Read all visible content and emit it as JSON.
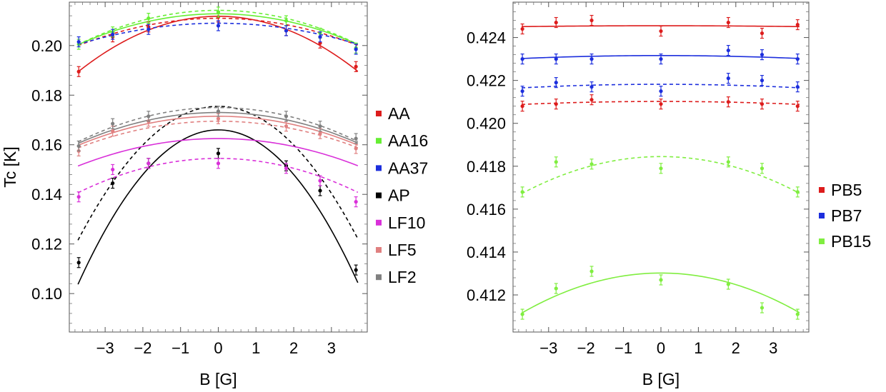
{
  "chart_data": [
    {
      "type": "scatter",
      "title": "",
      "xlabel": "B [G]",
      "ylabel": "Tc [K]",
      "xlim": [
        -3.95,
        3.95
      ],
      "ylim": [
        0.0845,
        0.2175
      ],
      "xticks": [
        -3,
        -2,
        -1,
        0,
        1,
        2,
        3
      ],
      "xtick_labels": [
        "−3",
        "−2",
        "−1",
        "0",
        "1",
        "2",
        "3"
      ],
      "yticks": [
        0.1,
        0.12,
        0.14,
        0.16,
        0.18,
        0.2
      ],
      "ytick_labels": [
        "0.10",
        "0.12",
        "0.14",
        "0.16",
        "0.18",
        "0.20"
      ],
      "legend": [
        "AA",
        "AA16",
        "AA37",
        "AP",
        "LF10",
        "LF5",
        "LF2"
      ],
      "series": [
        {
          "name": "AA",
          "color": "#dd1c1c",
          "points": [
            [
              -3.7,
              0.1895
            ],
            [
              -2.8,
              0.2035
            ],
            [
              -1.85,
              0.2075
            ],
            [
              0,
              0.2115
            ],
            [
              1.8,
              0.206
            ],
            [
              2.7,
              0.201
            ],
            [
              3.65,
              0.1915
            ]
          ],
          "fits": [
            {
              "style": "solid",
              "a": 0.2118,
              "b": 0.00162
            },
            {
              "style": "dashed",
              "a": 0.211,
              "b": 0.0008
            }
          ]
        },
        {
          "name": "AA16",
          "color": "#66ee33",
          "points": [
            [
              -3.7,
              0.2005
            ],
            [
              -2.8,
              0.2055
            ],
            [
              -1.85,
              0.211
            ],
            [
              0,
              0.2135
            ],
            [
              1.8,
              0.21
            ],
            [
              2.7,
              0.205
            ],
            [
              3.65,
              0.199
            ]
          ],
          "fits": [
            {
              "style": "solid",
              "a": 0.2128,
              "b": 0.0009
            },
            {
              "style": "dashed",
              "a": 0.2142,
              "b": 0.001
            }
          ]
        },
        {
          "name": "AA37",
          "color": "#1c2edd",
          "points": [
            [
              -3.7,
              0.2015
            ],
            [
              -2.8,
              0.2045
            ],
            [
              -1.85,
              0.2065
            ],
            [
              0,
              0.208
            ],
            [
              1.8,
              0.206
            ],
            [
              2.7,
              0.2035
            ],
            [
              3.65,
              0.1985
            ]
          ],
          "fits": [
            {
              "style": "dashed",
              "a": 0.209,
              "b": 0.00062
            }
          ]
        },
        {
          "name": "AP",
          "color": "#000000",
          "points": [
            [
              -3.7,
              0.1125
            ],
            [
              -2.8,
              0.1445
            ],
            [
              -1.85,
              0.1525
            ],
            [
              0,
              0.1565
            ],
            [
              1.8,
              0.1515
            ],
            [
              2.7,
              0.1415
            ],
            [
              3.65,
              0.1095
            ]
          ],
          "fits": [
            {
              "style": "solid",
              "a": 0.166,
              "b": 0.0045
            },
            {
              "style": "dashed",
              "a": 0.1755,
              "b": 0.0039
            }
          ]
        },
        {
          "name": "LF10",
          "color": "#d930d9",
          "points": [
            [
              -3.7,
              0.139
            ],
            [
              -2.8,
              0.15
            ],
            [
              -1.85,
              0.1525
            ],
            [
              0,
              0.1525
            ],
            [
              1.8,
              0.1505
            ],
            [
              2.7,
              0.1455
            ],
            [
              3.65,
              0.137
            ]
          ],
          "fits": [
            {
              "style": "solid",
              "a": 0.1625,
              "b": 0.0008
            },
            {
              "style": "dashed",
              "a": 0.1545,
              "b": 0.001
            }
          ]
        },
        {
          "name": "LF5",
          "color": "#e08080",
          "points": [
            [
              -3.7,
              0.1575
            ],
            [
              -2.8,
              0.1655
            ],
            [
              -1.85,
              0.1695
            ],
            [
              0,
              0.1705
            ],
            [
              1.8,
              0.1675
            ],
            [
              2.7,
              0.1645
            ],
            [
              3.65,
              0.1585
            ]
          ],
          "fits": [
            {
              "style": "solid",
              "a": 0.1715,
              "b": 0.00085
            },
            {
              "style": "dashed",
              "a": 0.1695,
              "b": 0.00078
            }
          ]
        },
        {
          "name": "LF2",
          "color": "#808080",
          "points": [
            [
              -3.7,
              0.1595
            ],
            [
              -2.8,
              0.1685
            ],
            [
              -1.85,
              0.1715
            ],
            [
              0,
              0.1735
            ],
            [
              1.8,
              0.1715
            ],
            [
              2.7,
              0.1675
            ],
            [
              3.65,
              0.1625
            ]
          ],
          "fits": [
            {
              "style": "solid",
              "a": 0.173,
              "b": 0.0009
            },
            {
              "style": "dashed",
              "a": 0.175,
              "b": 0.001
            }
          ]
        }
      ]
    },
    {
      "type": "scatter",
      "title": "",
      "xlabel": "B [G]",
      "ylabel": "",
      "xlim": [
        -3.95,
        3.95
      ],
      "ylim": [
        0.41027,
        0.42565
      ],
      "xticks": [
        -3,
        -2,
        -1,
        0,
        1,
        2,
        3
      ],
      "xtick_labels": [
        "−3",
        "−2",
        "−1",
        "0",
        "1",
        "2",
        "3"
      ],
      "yticks": [
        0.412,
        0.414,
        0.416,
        0.418,
        0.42,
        0.422,
        0.424
      ],
      "ytick_labels": [
        "0.412",
        "0.414",
        "0.416",
        "0.418",
        "0.420",
        "0.422",
        "0.424"
      ],
      "legend": [
        "PB5",
        "PB7",
        "PB15"
      ],
      "series": [
        {
          "name": "PB5",
          "color": "#dd1c1c",
          "points": [
            [
              -3.7,
              0.4244
            ],
            [
              -2.8,
              0.4247
            ],
            [
              -1.85,
              0.4248
            ],
            [
              0,
              0.4243
            ],
            [
              1.8,
              0.4247
            ],
            [
              2.7,
              0.4242
            ],
            [
              3.65,
              0.4246
            ]
          ],
          "fits": [
            {
              "style": "solid",
              "a": 0.42455,
              "b": 3e-06
            }
          ]
        },
        {
          "name": "PB5",
          "color": "#dd1c1c",
          "points": [
            [
              -3.7,
              0.4208
            ],
            [
              -2.8,
              0.4209
            ],
            [
              -1.85,
              0.4211
            ],
            [
              0,
              0.4209
            ],
            [
              1.8,
              0.421
            ],
            [
              2.7,
              0.4209
            ],
            [
              3.65,
              0.4208
            ]
          ],
          "fits": [
            {
              "style": "dashed",
              "a": 0.42102,
              "b": 1e-05
            }
          ]
        },
        {
          "name": "PB7",
          "color": "#1c2edd",
          "points": [
            [
              -3.7,
              0.423
            ],
            [
              -2.8,
              0.423
            ],
            [
              -1.85,
              0.423
            ],
            [
              0,
              0.423
            ],
            [
              1.8,
              0.4234
            ],
            [
              2.7,
              0.4232
            ],
            [
              3.65,
              0.423
            ]
          ],
          "fits": [
            {
              "style": "solid",
              "a": 0.42316,
              "b": 1e-05
            }
          ]
        },
        {
          "name": "PB7",
          "color": "#1c2edd",
          "points": [
            [
              -3.7,
              0.4215
            ],
            [
              -2.8,
              0.4219
            ],
            [
              -1.85,
              0.4217
            ],
            [
              0,
              0.4215
            ],
            [
              1.8,
              0.4221
            ],
            [
              2.7,
              0.422
            ],
            [
              3.65,
              0.4217
            ]
          ],
          "fits": [
            {
              "style": "dashed",
              "a": 0.42182,
              "b": 1.2e-05
            }
          ]
        },
        {
          "name": "PB15",
          "color": "#80ee40",
          "points": [
            [
              -3.7,
              0.4168
            ],
            [
              -2.8,
              0.4182
            ],
            [
              -1.85,
              0.4181
            ],
            [
              0,
              0.4179
            ],
            [
              1.8,
              0.4182
            ],
            [
              2.7,
              0.4179
            ],
            [
              3.65,
              0.4168
            ]
          ],
          "fits": [
            {
              "style": "dashed",
              "a": 0.41845,
              "b": 0.000125
            }
          ]
        },
        {
          "name": "PB15",
          "color": "#80ee40",
          "points": [
            [
              -3.7,
              0.4111
            ],
            [
              -2.8,
              0.4123
            ],
            [
              -1.85,
              0.4131
            ],
            [
              0,
              0.4127
            ],
            [
              1.8,
              0.4125
            ],
            [
              2.7,
              0.4114
            ],
            [
              3.65,
              0.4111
            ]
          ],
          "fits": [
            {
              "style": "solid",
              "a": 0.41302,
              "b": 0.000135
            }
          ]
        }
      ]
    }
  ]
}
